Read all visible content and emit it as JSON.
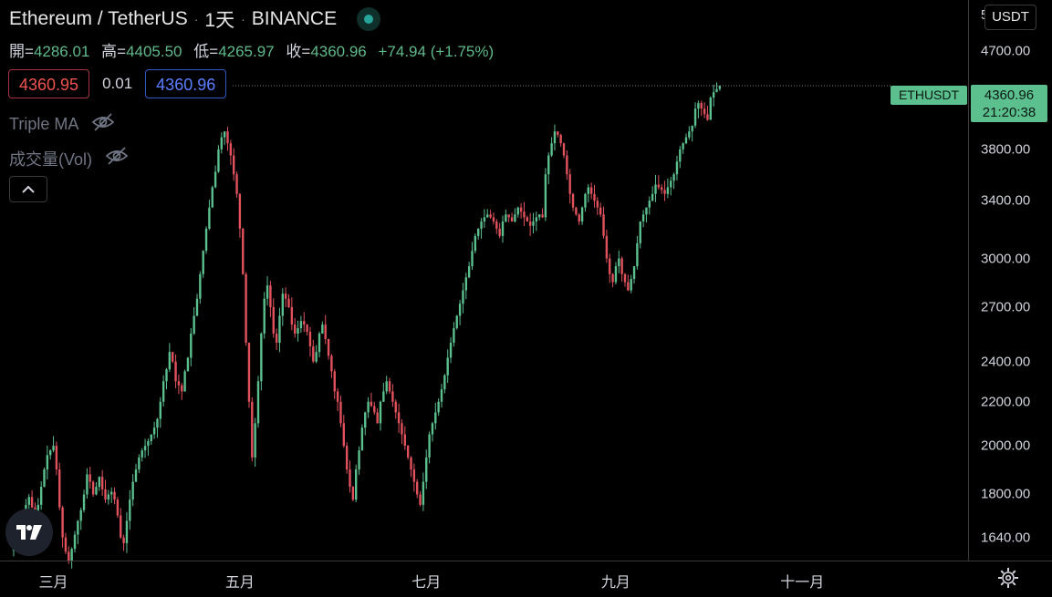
{
  "header": {
    "symbol": "Ethereum / TetherUS",
    "interval": "1天",
    "exchange": "BINANCE"
  },
  "ohlc": {
    "open_label": "開=",
    "open": "4286.01",
    "high_label": "高=",
    "high": "4405.50",
    "low_label": "低=",
    "low": "4265.97",
    "close_label": "收=",
    "close": "4360.96",
    "change": "+74.94 (+1.75%)"
  },
  "quote": {
    "sell": "4360.95",
    "spread": "0.01",
    "buy": "4360.96"
  },
  "indicators": [
    {
      "label": "Triple MA",
      "icon": "eye-off-icon"
    },
    {
      "label": "成交量(Vol)",
      "icon": "eye-off-icon"
    }
  ],
  "price_axis": {
    "currency_button": "USDT",
    "top_partial": "5",
    "symbol_tag": "ETHUSDT",
    "last_price": "4360.96",
    "countdown": "21:20:38"
  },
  "colors": {
    "up": "#5bbf8e",
    "down": "#e2525d",
    "background": "#000000"
  },
  "chart_data": {
    "type": "candlestick",
    "title": "",
    "y_scale": "log",
    "ylim": [
      1560,
      5250
    ],
    "y_ticks": [
      {
        "value": 4700,
        "label": "4700.00"
      },
      {
        "value": 3800,
        "label": "3800.00"
      },
      {
        "value": 3400,
        "label": "3400.00"
      },
      {
        "value": 3000,
        "label": "3000.00"
      },
      {
        "value": 2700,
        "label": "2700.00"
      },
      {
        "value": 2400,
        "label": "2400.00"
      },
      {
        "value": 2200,
        "label": "2200.00"
      },
      {
        "value": 2000,
        "label": "2000.00"
      },
      {
        "value": 1800,
        "label": "1800.00"
      },
      {
        "value": 1640,
        "label": "1640.00"
      }
    ],
    "x_ticks": [
      {
        "day": 13,
        "label": "三月"
      },
      {
        "day": 74,
        "label": "五月"
      },
      {
        "day": 135,
        "label": "七月"
      },
      {
        "day": 197,
        "label": "九月"
      },
      {
        "day": 258,
        "label": "十一月"
      }
    ],
    "first_day": 0,
    "last_price": 4360.96,
    "grid": false,
    "closes": [
      1610,
      1660,
      1700,
      1730,
      1760,
      1790,
      1750,
      1700,
      1760,
      1830,
      1900,
      1960,
      1980,
      2000,
      1900,
      1750,
      1640,
      1590,
      1560,
      1600,
      1650,
      1700,
      1740,
      1800,
      1880,
      1850,
      1800,
      1830,
      1870,
      1820,
      1780,
      1800,
      1810,
      1780,
      1720,
      1640,
      1620,
      1700,
      1780,
      1850,
      1900,
      1950,
      1980,
      2000,
      2020,
      2050,
      2080,
      2120,
      2200,
      2300,
      2360,
      2450,
      2400,
      2300,
      2280,
      2250,
      2350,
      2420,
      2550,
      2650,
      2750,
      2900,
      3050,
      3200,
      3350,
      3500,
      3620,
      3800,
      3900,
      3950,
      3850,
      3750,
      3600,
      3450,
      3200,
      2900,
      2500,
      2200,
      1950,
      2100,
      2300,
      2550,
      2750,
      2830,
      2700,
      2550,
      2500,
      2650,
      2780,
      2750,
      2700,
      2600,
      2550,
      2580,
      2620,
      2600,
      2560,
      2480,
      2400,
      2450,
      2550,
      2600,
      2520,
      2430,
      2350,
      2250,
      2200,
      2100,
      2000,
      1900,
      1830,
      1780,
      1900,
      1980,
      2080,
      2150,
      2200,
      2180,
      2150,
      2100,
      2200,
      2250,
      2300,
      2250,
      2200,
      2150,
      2100,
      2050,
      2000,
      1950,
      1900,
      1850,
      1800,
      1760,
      1850,
      1950,
      2050,
      2100,
      2150,
      2200,
      2260,
      2330,
      2420,
      2500,
      2580,
      2650,
      2720,
      2800,
      2880,
      2950,
      3050,
      3150,
      3200,
      3250,
      3280,
      3300,
      3280,
      3250,
      3200,
      3150,
      3250,
      3300,
      3280,
      3250,
      3300,
      3350,
      3320,
      3280,
      3250,
      3220,
      3250,
      3280,
      3300,
      3280,
      3600,
      3750,
      3850,
      3950,
      3920,
      3850,
      3750,
      3600,
      3450,
      3350,
      3300,
      3250,
      3350,
      3450,
      3500,
      3450,
      3400,
      3350,
      3300,
      3150,
      3000,
      2900,
      2850,
      2950,
      3000,
      2900,
      2850,
      2800,
      2870,
      2950,
      3100,
      3250,
      3300,
      3350,
      3400,
      3450,
      3520,
      3500,
      3480,
      3450,
      3500,
      3550,
      3600,
      3700,
      3800,
      3850,
      3900,
      3950,
      4000,
      4150,
      4200,
      4150,
      4100,
      4050,
      4250,
      4300,
      4330,
      4360.96
    ]
  }
}
